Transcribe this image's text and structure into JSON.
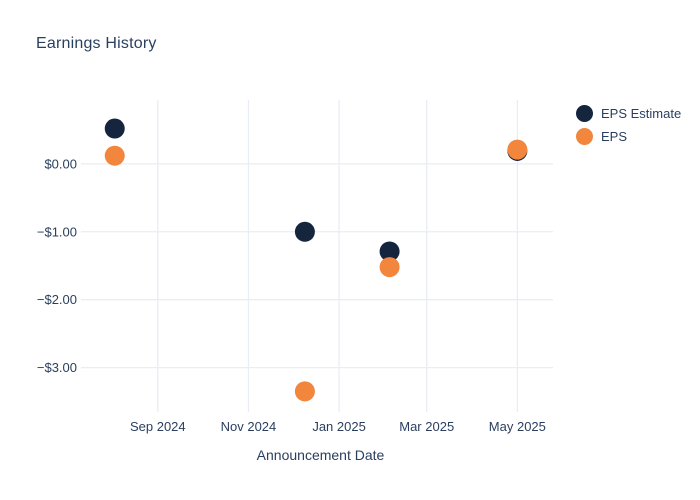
{
  "title": "Earnings History",
  "colors": {
    "eps_estimate": "#15253e",
    "eps": "#f2863d",
    "text": "#2a3f5f",
    "grid": "#e9edf4",
    "background": "#ffffff"
  },
  "chart_data": {
    "type": "scatter",
    "title": "Earnings History",
    "xlabel": "Announcement Date",
    "ylabel": "",
    "grid": true,
    "legend_position": "right",
    "x_range": [
      "2024-07-16",
      "2025-05-25"
    ],
    "y_range": [
      -3.58,
      0.94
    ],
    "x_ticks": [
      {
        "value": "2024-09-01",
        "label": "Sep 2024"
      },
      {
        "value": "2024-11-01",
        "label": "Nov 2024"
      },
      {
        "value": "2025-01-01",
        "label": "Jan 2025"
      },
      {
        "value": "2025-03-01",
        "label": "Mar 2025"
      },
      {
        "value": "2025-05-01",
        "label": "May 2025"
      }
    ],
    "y_ticks": [
      {
        "value": 0,
        "label": "$0.00"
      },
      {
        "value": -1,
        "label": "−$1.00"
      },
      {
        "value": -2,
        "label": "−$2.00"
      },
      {
        "value": -3,
        "label": "−$3.00"
      }
    ],
    "series": [
      {
        "name": "EPS Estimate",
        "color": "#15253e",
        "points": [
          {
            "x": "2024-08-03",
            "y": 0.52
          },
          {
            "x": "2024-12-09",
            "y": -1.0
          },
          {
            "x": "2025-02-04",
            "y": -1.29
          },
          {
            "x": "2025-05-01",
            "y": 0.19
          }
        ]
      },
      {
        "name": "EPS",
        "color": "#f2863d",
        "points": [
          {
            "x": "2024-08-03",
            "y": 0.12
          },
          {
            "x": "2024-12-09",
            "y": -3.35
          },
          {
            "x": "2025-02-04",
            "y": -1.52
          },
          {
            "x": "2025-05-01",
            "y": 0.21
          }
        ]
      }
    ]
  }
}
